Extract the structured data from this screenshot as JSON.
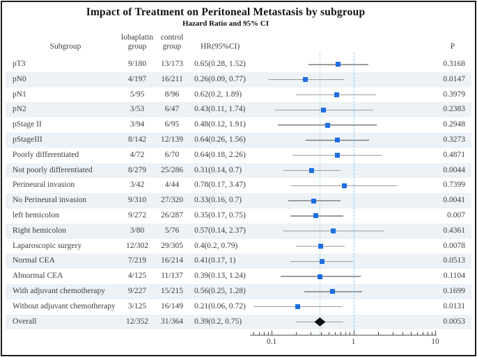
{
  "figure": {
    "title": "Impact of Treatment on Peritoneal Metastasis by subgroup",
    "subtitle": "Hazard Ratio and 95% CI"
  },
  "columns": {
    "subgroup": "Subgroup",
    "treatment": "lobaplatin\ngroup",
    "control": "control\ngroup",
    "hr": "HR(95%CI)",
    "p": "P"
  },
  "colors": {
    "marker_blue": "#1d6ee3",
    "summary_black": "#101010",
    "ci_line": "#9b9b9b",
    "stripe": "#edf2f7",
    "ref_dashed_blue": "#85cbf2",
    "ref_dotted_teal": "#8fd8cd",
    "axis": "#4a4a4a",
    "text": "#3d3d3d"
  },
  "chart_data": {
    "type": "scatter",
    "subtype": "forest-plot",
    "x_scale": "log10",
    "x_axis": {
      "major_ticks": [
        0.1,
        1,
        10
      ],
      "major_tick_labels": [
        "0.1",
        "1",
        "10"
      ],
      "minor_ticks": [
        0.06,
        0.07,
        0.08,
        0.09,
        0.2,
        0.3,
        0.4,
        0.5,
        0.6,
        0.7,
        0.8,
        0.9,
        2,
        3,
        4,
        5,
        6,
        7,
        8,
        9
      ],
      "line_range": [
        0.055,
        10.45
      ]
    },
    "reference_lines": [
      {
        "value": 1,
        "style": "dashed",
        "color": "#85cbf2"
      },
      {
        "value": 0.39,
        "style": "dotted",
        "color": "#8fd8cd"
      }
    ],
    "rows": [
      {
        "label": "pT3",
        "treated": "9/180",
        "control": "13/173",
        "hr_text": "0.65(0.28, 1.52)",
        "p": "0.3168",
        "hr": 0.65,
        "lo": 0.28,
        "hi": 1.52,
        "marker": "square"
      },
      {
        "label": "pN0",
        "treated": "4/197",
        "control": "16/211",
        "hr_text": "0.26(0.09, 0.77)",
        "p": "0.0147",
        "hr": 0.26,
        "lo": 0.09,
        "hi": 0.77,
        "marker": "square"
      },
      {
        "label": "pN1",
        "treated": "5/95",
        "control": "8/96",
        "hr_text": "0.62(0.2, 1.89)",
        "p": "0.3979",
        "hr": 0.62,
        "lo": 0.2,
        "hi": 1.89,
        "marker": "square"
      },
      {
        "label": "pN2",
        "treated": "3/53",
        "control": "6/47",
        "hr_text": "0.43(0.11, 1.74)",
        "p": "0.2383",
        "hr": 0.43,
        "lo": 0.11,
        "hi": 1.74,
        "marker": "square"
      },
      {
        "label": "pStage II",
        "treated": "3/94",
        "control": "6/95",
        "hr_text": "0.48(0.12, 1.91)",
        "p": "0.2948",
        "hr": 0.48,
        "lo": 0.12,
        "hi": 1.91,
        "marker": "square"
      },
      {
        "label": "pStageIII",
        "treated": "8/142",
        "control": "12/139",
        "hr_text": "0.64(0.26, 1.56)",
        "p": "0.3273",
        "hr": 0.64,
        "lo": 0.26,
        "hi": 1.56,
        "marker": "square"
      },
      {
        "label": "Poorly differentiated",
        "treated": "4/72",
        "control": "6/70",
        "hr_text": "0.64(0.18, 2.26)",
        "p": "0.4871",
        "hr": 0.64,
        "lo": 0.18,
        "hi": 2.26,
        "marker": "square"
      },
      {
        "label": "Not poorly differentiated",
        "treated": "8/279",
        "control": "25/286",
        "hr_text": "0.31(0.14, 0.7)",
        "p": "0.0044",
        "hr": 0.31,
        "lo": 0.14,
        "hi": 0.7,
        "marker": "square"
      },
      {
        "label": "Perineural invasion",
        "treated": "3/42",
        "control": "4/44",
        "hr_text": "0.78(0.17, 3.47)",
        "p": "0.7399",
        "hr": 0.78,
        "lo": 0.17,
        "hi": 3.47,
        "marker": "square"
      },
      {
        "label": "No Perineural invasion",
        "treated": "9/310",
        "control": "27/320",
        "hr_text": "0.33(0.16, 0.7)",
        "p": "0.0041",
        "hr": 0.33,
        "lo": 0.16,
        "hi": 0.7,
        "marker": "square"
      },
      {
        "label": "left hemicolon",
        "treated": "9/272",
        "control": "26/287",
        "hr_text": "0.35(0.17, 0.75)",
        "p": "0.007",
        "hr": 0.35,
        "lo": 0.17,
        "hi": 0.75,
        "marker": "square"
      },
      {
        "label": "Right hemicolon",
        "treated": "3/80",
        "control": "5/76",
        "hr_text": "0.57(0.14, 2.37)",
        "p": "0.4361",
        "hr": 0.57,
        "lo": 0.14,
        "hi": 2.37,
        "marker": "square"
      },
      {
        "label": "Laparoscopic surgery",
        "treated": "12/302",
        "control": "29/305",
        "hr_text": "0.4(0.2, 0.79)",
        "p": "0.0078",
        "hr": 0.4,
        "lo": 0.2,
        "hi": 0.79,
        "marker": "square"
      },
      {
        "label": "Normal CEA",
        "treated": "7/219",
        "control": "16/214",
        "hr_text": "0.41(0.17, 1)",
        "p": "0.0513",
        "hr": 0.41,
        "lo": 0.17,
        "hi": 1,
        "marker": "square"
      },
      {
        "label": "Abnormal CEA",
        "treated": "4/125",
        "control": "11/137",
        "hr_text": "0.39(0.13, 1.24)",
        "p": "0.1104",
        "hr": 0.39,
        "lo": 0.13,
        "hi": 1.24,
        "marker": "square"
      },
      {
        "label": "With adjuvant chemotherapy",
        "treated": "9/227",
        "control": "15/215",
        "hr_text": "0.56(0.25, 1.28)",
        "p": "0.1699",
        "hr": 0.56,
        "lo": 0.25,
        "hi": 1.28,
        "marker": "square"
      },
      {
        "label": "Without adjuvant chemotherapy",
        "treated": "3/125",
        "control": "16/149",
        "hr_text": "0.21(0.06, 0.72)",
        "p": "0.0131",
        "hr": 0.21,
        "lo": 0.06,
        "hi": 0.72,
        "marker": "square"
      },
      {
        "label": "Overall",
        "treated": "12/352",
        "control": "31/364",
        "hr_text": "0.39(0.2, 0.75)",
        "p": "0.0053",
        "hr": 0.39,
        "lo": 0.2,
        "hi": 0.75,
        "marker": "diamond"
      }
    ]
  }
}
